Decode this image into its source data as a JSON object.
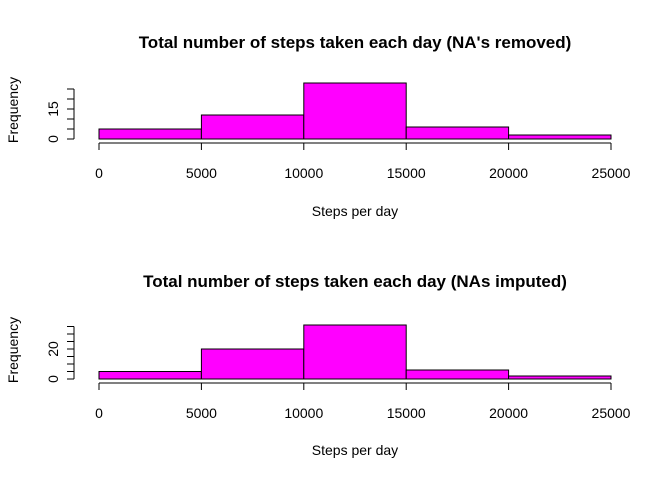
{
  "chart_data": [
    {
      "type": "bar",
      "title": "Total number of steps taken each day (NA's removed)",
      "xlabel": "Steps per day",
      "ylabel": "Frequency",
      "bins": [
        {
          "from": 0,
          "to": 5000,
          "value": 5
        },
        {
          "from": 5000,
          "to": 10000,
          "value": 12
        },
        {
          "from": 10000,
          "to": 15000,
          "value": 28
        },
        {
          "from": 15000,
          "to": 20000,
          "value": 6
        },
        {
          "from": 20000,
          "to": 25000,
          "value": 2
        }
      ],
      "x_ticks": [
        "0",
        "5000",
        "10000",
        "15000",
        "20000",
        "25000"
      ],
      "x_tick_values": [
        0,
        5000,
        10000,
        15000,
        20000,
        25000
      ],
      "y_ticks": [
        0,
        5,
        10,
        15,
        20,
        25
      ],
      "y_tick_labels": [
        "0",
        "",
        "",
        "15",
        "",
        ""
      ],
      "xlim": [
        0,
        25000
      ],
      "ylim": [
        0,
        28
      ],
      "bar_color": "#ff00ff",
      "grid": false
    },
    {
      "type": "bar",
      "title": "Total number of steps taken each day (NAs imputed)",
      "xlabel": "Steps per day",
      "ylabel": "Frequency",
      "bins": [
        {
          "from": 0,
          "to": 5000,
          "value": 5
        },
        {
          "from": 5000,
          "to": 10000,
          "value": 20
        },
        {
          "from": 10000,
          "to": 15000,
          "value": 36
        },
        {
          "from": 15000,
          "to": 20000,
          "value": 6
        },
        {
          "from": 20000,
          "to": 25000,
          "value": 2
        }
      ],
      "x_ticks": [
        "0",
        "5000",
        "10000",
        "15000",
        "20000",
        "25000"
      ],
      "x_tick_values": [
        0,
        5000,
        10000,
        15000,
        20000,
        25000
      ],
      "y_ticks": [
        0,
        5,
        10,
        15,
        20,
        25,
        30,
        35
      ],
      "y_tick_labels": [
        "0",
        "",
        "",
        "",
        "20",
        "",
        "",
        ""
      ],
      "xlim": [
        0,
        25000
      ],
      "ylim": [
        0,
        36
      ],
      "bar_color": "#ff00ff",
      "grid": false
    }
  ]
}
